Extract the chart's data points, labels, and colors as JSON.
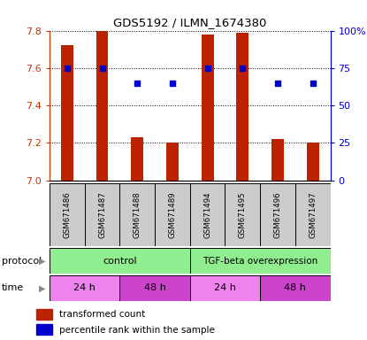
{
  "title": "GDS5192 / ILMN_1674380",
  "samples": [
    "GSM671486",
    "GSM671487",
    "GSM671488",
    "GSM671489",
    "GSM671494",
    "GSM671495",
    "GSM671496",
    "GSM671497"
  ],
  "bar_values": [
    7.72,
    7.8,
    7.23,
    7.2,
    7.78,
    7.79,
    7.22,
    7.2
  ],
  "dot_values": [
    75,
    75,
    65,
    65,
    75,
    75,
    65,
    65
  ],
  "ylim_left": [
    7.0,
    7.8
  ],
  "ylim_right": [
    0,
    100
  ],
  "yticks_left": [
    7.0,
    7.2,
    7.4,
    7.6,
    7.8
  ],
  "yticks_right": [
    0,
    25,
    50,
    75,
    100
  ],
  "bar_color": "#bb2200",
  "dot_color": "#0000cc",
  "bar_bottom": 7.0,
  "protocol_colors": [
    "#90EE90",
    "#90EE90"
  ],
  "protocol_labels": [
    "control",
    "TGF-beta overexpression"
  ],
  "time_labels": [
    "24 h",
    "48 h",
    "24 h",
    "48 h"
  ],
  "time_colors_light": "#EE82EE",
  "time_colors_dark": "#CC44CC",
  "sample_box_color": "#CCCCCC",
  "left_tick_color": "#cc3300",
  "right_tick_color": "#0000cc",
  "legend_items": [
    {
      "color": "#bb2200",
      "label": "transformed count"
    },
    {
      "color": "#0000cc",
      "label": "percentile rank within the sample"
    }
  ]
}
